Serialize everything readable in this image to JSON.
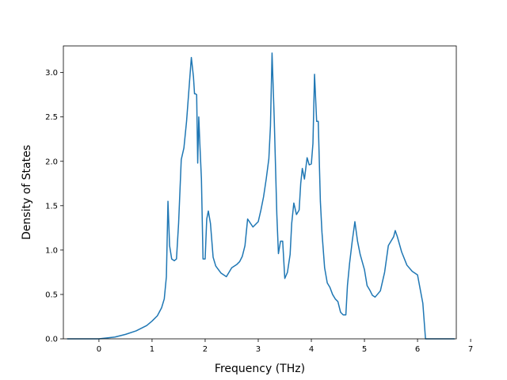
{
  "chart_data": {
    "type": "line",
    "title": "",
    "xlabel": "Frequency (THz)",
    "ylabel": "Density of States",
    "xlim": [
      -0.67,
      6.73
    ],
    "ylim": [
      0,
      3.3
    ],
    "x_ticks": [
      0,
      1,
      2,
      3,
      4,
      5,
      6,
      7
    ],
    "y_ticks": [
      0.0,
      0.5,
      1.0,
      1.5,
      2.0,
      2.5,
      3.0
    ],
    "x_tick_labels": [
      "0",
      "1",
      "2",
      "3",
      "4",
      "5",
      "6",
      "7"
    ],
    "y_tick_labels": [
      "0.0",
      "0.5",
      "1.0",
      "1.5",
      "2.0",
      "2.5",
      "3.0"
    ],
    "grid": false,
    "line_color": "#1f77b4",
    "series": [
      {
        "x": [
          -0.6,
          0.0,
          0.3,
          0.5,
          0.7,
          0.9,
          1.0,
          1.1,
          1.18,
          1.23,
          1.27,
          1.3,
          1.33,
          1.37,
          1.42,
          1.46,
          1.5,
          1.55,
          1.6,
          1.65,
          1.7,
          1.74,
          1.78,
          1.8,
          1.82,
          1.84,
          1.86,
          1.88,
          1.9,
          1.93,
          1.96,
          2.0,
          2.03,
          2.06,
          2.1,
          2.15,
          2.2,
          2.3,
          2.4,
          2.5,
          2.6,
          2.65,
          2.7,
          2.75,
          2.8,
          2.9,
          2.95,
          3.0,
          3.05,
          3.1,
          3.15,
          3.2,
          3.23,
          3.26,
          3.3,
          3.35,
          3.38,
          3.42,
          3.46,
          3.5,
          3.55,
          3.6,
          3.63,
          3.67,
          3.72,
          3.77,
          3.8,
          3.83,
          3.87,
          3.92,
          3.96,
          4.0,
          4.03,
          4.06,
          4.1,
          4.13,
          4.17,
          4.2,
          4.25,
          4.3,
          4.35,
          4.4,
          4.45,
          4.5,
          4.55,
          4.6,
          4.65,
          4.68,
          4.72,
          4.77,
          4.82,
          4.87,
          4.92,
          5.0,
          5.05,
          5.1,
          5.15,
          5.2,
          5.3,
          5.38,
          5.45,
          5.5,
          5.55,
          5.58,
          5.62,
          5.7,
          5.8,
          5.9,
          6.0,
          6.05,
          6.1,
          6.15,
          6.2,
          6.3,
          6.5,
          6.7
        ],
        "y": [
          0.0,
          0.0,
          0.02,
          0.05,
          0.09,
          0.15,
          0.2,
          0.26,
          0.35,
          0.45,
          0.7,
          1.55,
          1.05,
          0.9,
          0.88,
          0.9,
          1.3,
          2.02,
          2.15,
          2.45,
          2.85,
          3.17,
          2.95,
          2.76,
          2.76,
          2.75,
          1.98,
          2.5,
          2.2,
          1.8,
          0.9,
          0.9,
          1.35,
          1.44,
          1.3,
          0.92,
          0.82,
          0.74,
          0.7,
          0.8,
          0.84,
          0.87,
          0.93,
          1.05,
          1.35,
          1.26,
          1.29,
          1.32,
          1.45,
          1.6,
          1.8,
          2.03,
          2.4,
          3.22,
          2.5,
          1.4,
          0.96,
          1.1,
          1.1,
          0.68,
          0.75,
          0.95,
          1.3,
          1.53,
          1.4,
          1.45,
          1.75,
          1.92,
          1.8,
          2.04,
          1.96,
          1.97,
          2.2,
          2.98,
          2.45,
          2.45,
          1.55,
          1.2,
          0.8,
          0.63,
          0.58,
          0.5,
          0.45,
          0.42,
          0.3,
          0.27,
          0.27,
          0.6,
          0.85,
          1.1,
          1.32,
          1.1,
          0.95,
          0.78,
          0.6,
          0.55,
          0.49,
          0.47,
          0.54,
          0.75,
          1.05,
          1.1,
          1.15,
          1.22,
          1.15,
          0.98,
          0.83,
          0.76,
          0.72,
          0.56,
          0.4,
          0.0,
          0.0,
          0.0,
          0.0,
          0.0
        ]
      }
    ]
  }
}
